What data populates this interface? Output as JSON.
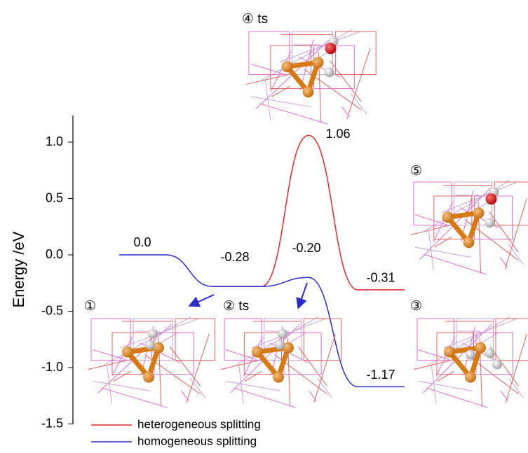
{
  "chart_data": {
    "type": "energy-profile",
    "y_label": "Energy /eV",
    "ylim": [
      -1.5,
      1.25
    ],
    "yticks": [
      {
        "value": -1.5,
        "label": "-1.5"
      },
      {
        "value": -1.0,
        "label": "-1.0"
      },
      -0.5,
      {
        "value": 0.0,
        "label": "0.0"
      },
      0.5,
      {
        "value": 1.0,
        "label": "1.0"
      }
    ],
    "categories": [
      null,
      null,
      null,
      null
    ],
    "series": [
      {
        "name": "heterogeneous splitting",
        "color": "#e8262a",
        "values": [
          null,
          -0.28,
          1.06,
          -0.31
        ],
        "value_labels": [
          null,
          null,
          "1.06",
          "-0.31"
        ]
      },
      {
        "name": "homogeneous splitting",
        "color": "#2a2acf",
        "values": [
          0.0,
          -0.28,
          -0.2,
          -1.17
        ],
        "value_labels": [
          "0.0",
          "-0.28",
          "-0.20",
          "-1.17"
        ]
      }
    ],
    "annotations": [
      "①",
      "② ts",
      "③",
      "④ ts",
      "⑤"
    ]
  }
}
